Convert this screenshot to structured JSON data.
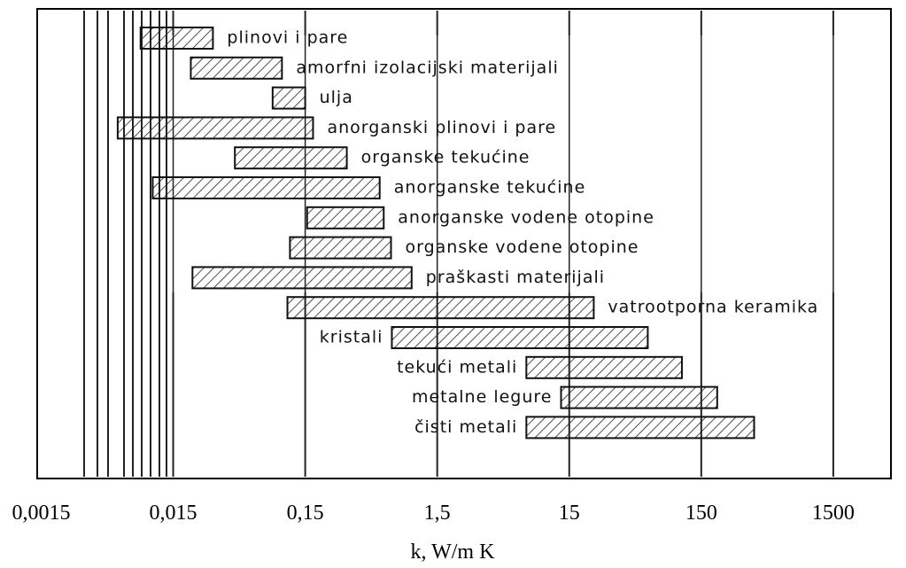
{
  "chart_data": {
    "type": "range-bar",
    "categories": [
      "plinovi i pare",
      "amorfni izolacijski materijali",
      "ulja",
      "anorganski plinovi i pare",
      "organske tekućine",
      "anorganske tekućine",
      "anorganske vodene otopine",
      "organske vodene otopine",
      "praškasti materijali",
      "vatrootporna keramika",
      "kristali",
      "tekući metali",
      "metalne legure",
      "čisti metali"
    ],
    "values": [
      [
        0.0085,
        0.03
      ],
      [
        0.0204,
        0.1
      ],
      [
        0.085,
        0.15
      ],
      [
        0.0057,
        0.172
      ],
      [
        0.044,
        0.31
      ],
      [
        0.0105,
        0.55
      ],
      [
        0.155,
        0.59
      ],
      [
        0.115,
        0.67
      ],
      [
        0.021,
        0.96
      ],
      [
        0.11,
        23
      ],
      [
        0.68,
        59
      ],
      [
        7.1,
        107
      ],
      [
        13,
        198
      ],
      [
        7.1,
        377
      ]
    ],
    "x_label": "k, W/m K",
    "log_x": true,
    "xlim": [
      0.0014,
      4100
    ],
    "xticks": [
      {
        "value": 0.0015,
        "label": "0,0015"
      },
      {
        "value": 0.015,
        "label": "0,015"
      },
      {
        "value": 0.15,
        "label": "0,15"
      },
      {
        "value": 1.5,
        "label": "1,5"
      },
      15,
      150,
      1500
    ]
  }
}
